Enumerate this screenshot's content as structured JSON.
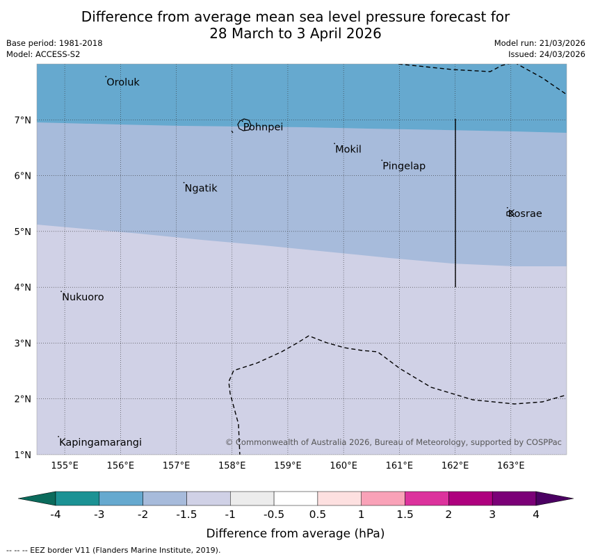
{
  "title": {
    "line1": "Difference from average mean sea level pressure forecast for",
    "line2": "28 March to 3 April 2026"
  },
  "meta": {
    "base_period": "Base period: 1981-2018",
    "model": "Model: ACCESS-S2",
    "model_run": "Model run: 21/03/2026",
    "issued": "Issued: 24/03/2026"
  },
  "map": {
    "lon_range": [
      154.5,
      164.0
    ],
    "lat_range": [
      1.0,
      8.0
    ],
    "lon_ticks": [
      "155°E",
      "156°E",
      "157°E",
      "158°E",
      "159°E",
      "160°E",
      "161°E",
      "162°E",
      "163°E"
    ],
    "lat_ticks": [
      "7°N",
      "6°N",
      "5°N",
      "4°N",
      "3°N",
      "2°N",
      "1°N"
    ],
    "places": [
      {
        "name": "Oroluk",
        "lon": 155.75,
        "lat": 7.7
      },
      {
        "name": "Pohnpei",
        "lon": 158.2,
        "lat": 6.9
      },
      {
        "name": "Mokil",
        "lon": 159.85,
        "lat": 6.5
      },
      {
        "name": "Pingelap",
        "lon": 160.7,
        "lat": 6.2
      },
      {
        "name": "Ngatik",
        "lon": 157.15,
        "lat": 5.8
      },
      {
        "name": "Kosrae",
        "lon": 162.95,
        "lat": 5.35
      },
      {
        "name": "Nukuoro",
        "lon": 154.95,
        "lat": 3.85
      },
      {
        "name": "Kapingamarangi",
        "lon": 154.9,
        "lat": 1.25
      }
    ],
    "copyright": "© Commonwealth of Australia 2026, Bureau of Meteorology, supported by COSPPac"
  },
  "legend": {
    "tick_labels": [
      "-4",
      "-3",
      "-2",
      "-1.5",
      "-1",
      "-0.5",
      "0.5",
      "1",
      "1.5",
      "2",
      "3",
      "4"
    ],
    "colors": [
      "#1c9294",
      "#66a9cf",
      "#a7bbdb",
      "#d0d1e6",
      "#ececec",
      "#ffffff",
      "#fde0e0",
      "#f9a2b8",
      "#dc339d",
      "#ae017e",
      "#7b0077"
    ],
    "under_color": "#0b6b5c",
    "over_color": "#4b0062",
    "label": "Difference from average (hPa)"
  },
  "field_colors": {
    "band_minus3_to_minus2": "#66a9cf",
    "band_minus2_to_minus1_5": "#a7bbdb",
    "band_minus1_5_to_minus1": "#d0d1e6"
  },
  "footer": "-- -- -- EEZ border V11 (Flanders Marine Institute, 2019)."
}
